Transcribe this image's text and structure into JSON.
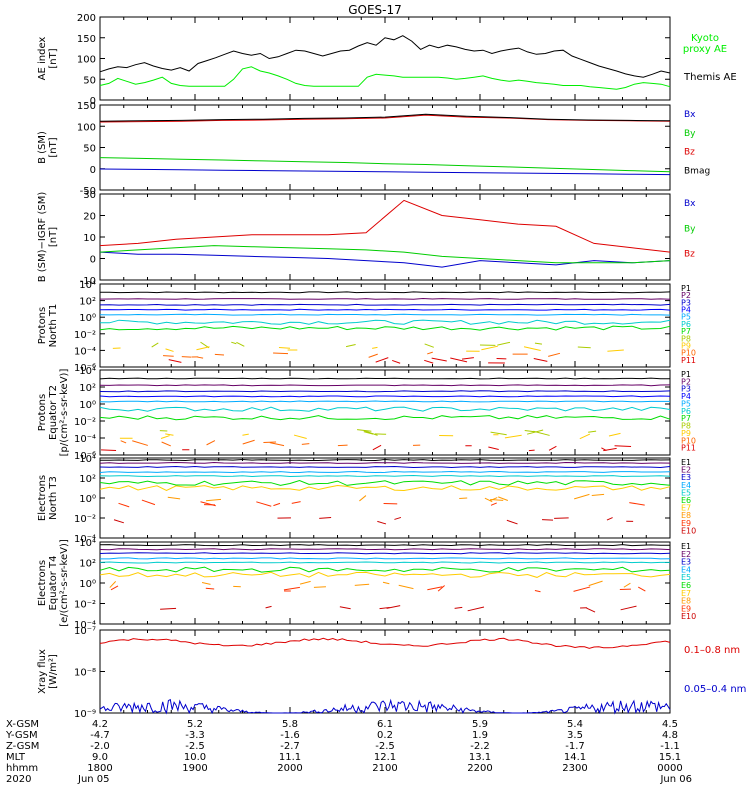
{
  "figure_title": "GOES-17",
  "chart_data": [
    {
      "type": "line",
      "ylabel": [
        "AE index",
        "[nT]"
      ],
      "yticks": [
        "0",
        "50",
        "100",
        "150",
        "200"
      ],
      "ylim": [
        0,
        200
      ],
      "series": [
        {
          "name": "Kyoto proxy AE",
          "name_lines": [
            "Kyoto",
            "proxy AE"
          ],
          "color": "#00ee00",
          "values": [
            35,
            40,
            52,
            45,
            38,
            42,
            48,
            55,
            40,
            35,
            33,
            33,
            33,
            33,
            33,
            50,
            75,
            80,
            70,
            65,
            58,
            50,
            40,
            35,
            33,
            33,
            33,
            33,
            33,
            33,
            55,
            62,
            60,
            58,
            55,
            55,
            55,
            55,
            55,
            53,
            50,
            52,
            55,
            58,
            52,
            48,
            45,
            48,
            45,
            42,
            40,
            38,
            35,
            35,
            35,
            32,
            30,
            28,
            26,
            30,
            38,
            42,
            40,
            38,
            32
          ]
        },
        {
          "name": "Themis AE",
          "color": "#000000",
          "values": [
            68,
            75,
            80,
            78,
            85,
            90,
            82,
            76,
            72,
            78,
            70,
            88,
            95,
            102,
            110,
            118,
            112,
            108,
            112,
            100,
            104,
            112,
            120,
            118,
            112,
            106,
            112,
            118,
            120,
            130,
            138,
            132,
            150,
            145,
            155,
            142,
            122,
            132,
            126,
            132,
            128,
            122,
            118,
            120,
            112,
            118,
            122,
            125,
            116,
            110,
            112,
            118,
            120,
            106,
            98,
            90,
            82,
            76,
            70,
            63,
            58,
            55,
            62,
            70,
            65
          ]
        }
      ]
    },
    {
      "type": "line",
      "ylabel": [
        "B (SM)",
        "[nT]"
      ],
      "yticks": [
        "-50",
        "0",
        "50",
        "100",
        "150"
      ],
      "ylim": [
        -60,
        150
      ],
      "series": [
        {
          "name": "Bx",
          "color": "#0000cc",
          "values": [
            -8,
            -9,
            -10,
            -11,
            -12,
            -13,
            -14,
            -15,
            -16,
            -17,
            -18,
            -19,
            -20,
            -21,
            -22
          ]
        },
        {
          "name": "By",
          "color": "#00cc00",
          "values": [
            20,
            18,
            16,
            14,
            12,
            10,
            8,
            5,
            3,
            0,
            -3,
            -6,
            -9,
            -12,
            -15
          ]
        },
        {
          "name": "Bz",
          "color": "#dd0000",
          "values": [
            108,
            109,
            110,
            112,
            113,
            115,
            116,
            118,
            125,
            120,
            118,
            114,
            112,
            111,
            110
          ]
        },
        {
          "name": "Bmag",
          "color": "#000000",
          "values": [
            110,
            111,
            112,
            114,
            115,
            117,
            118,
            120,
            127,
            122,
            119,
            115,
            113,
            112,
            111
          ]
        }
      ]
    },
    {
      "type": "line",
      "ylabel": [
        "B (SM)−IGRF (SM)",
        "[nT]"
      ],
      "yticks": [
        "-10",
        "0",
        "10",
        "20",
        "30"
      ],
      "ylim": [
        -10,
        30
      ],
      "series": [
        {
          "name": "Bx",
          "color": "#0000cc",
          "values": [
            3,
            2,
            2,
            1.5,
            1,
            0.5,
            0,
            -1,
            -2,
            -4,
            -1,
            -2,
            -3,
            -1,
            -2,
            -1
          ]
        },
        {
          "name": "By",
          "color": "#00cc00",
          "values": [
            3,
            4,
            5,
            6,
            5.5,
            5,
            4.5,
            4,
            3,
            1,
            0,
            -1,
            -2,
            -2,
            -2,
            -1
          ]
        },
        {
          "name": "Bz",
          "color": "#dd0000",
          "values": [
            6,
            7,
            9,
            10,
            11,
            11,
            11,
            12,
            27,
            20,
            18,
            16,
            15,
            7,
            5,
            3
          ]
        }
      ]
    },
    {
      "type": "line",
      "ylabel": [
        "Protons",
        "North T1"
      ],
      "yticks": [
        "10⁻⁶",
        "10⁻⁴",
        "10⁻²",
        "10⁰",
        "10²",
        "10⁴"
      ],
      "ylim": [
        -6,
        4
      ],
      "log": true,
      "legend": [
        "P1",
        "P2",
        "P3",
        "P4",
        "P5",
        "P6",
        "P7",
        "P8",
        "P9",
        "P10",
        "P11"
      ]
    },
    {
      "type": "line",
      "ylabel": [
        "Protons",
        "Equator T2",
        "[p/(cm²-s-sr-keV)]"
      ],
      "yticks": [
        "10⁻⁶",
        "10⁻⁴",
        "10⁻²",
        "10⁰",
        "10²",
        "10⁴"
      ],
      "ylim": [
        -6,
        4
      ],
      "log": true,
      "legend": [
        "P1",
        "P2",
        "P3",
        "P4",
        "P5",
        "P6",
        "P7",
        "P8",
        "P9",
        "P10",
        "P11"
      ]
    },
    {
      "type": "line",
      "ylabel": [
        "Electrons",
        "North T3"
      ],
      "yticks": [
        "10⁻⁴",
        "10⁻²",
        "10⁰",
        "10²",
        "10⁴"
      ],
      "ylim": [
        -4,
        4
      ],
      "log": true,
      "legend": [
        "E1",
        "E2",
        "E3",
        "E4",
        "E5",
        "E6",
        "E7",
        "E8",
        "E9",
        "E10"
      ]
    },
    {
      "type": "line",
      "ylabel": [
        "Electrons",
        "Equator T4",
        "[e/(cm²-s-sr-keV)]"
      ],
      "yticks": [
        "10⁻⁴",
        "10⁻²",
        "10⁰",
        "10²",
        "10⁴"
      ],
      "ylim": [
        -4,
        4
      ],
      "log": true,
      "legend": [
        "E1",
        "E2",
        "E3",
        "E4",
        "E5",
        "E6",
        "E7",
        "E8",
        "E9",
        "E10"
      ]
    },
    {
      "type": "line",
      "ylabel": [
        "Xray flux",
        "[W/m²]"
      ],
      "yticks": [
        "10⁻⁹",
        "10⁻⁸",
        "10⁻⁷"
      ],
      "ylim": [
        -9,
        -7
      ],
      "log": true,
      "series": [
        {
          "name": "0.1–0.8 nm",
          "color": "#dd0000"
        },
        {
          "name": "0.05–0.4 nm",
          "color": "#0000cc"
        }
      ]
    }
  ],
  "x_axis": {
    "row_labels": [
      "X-GSM",
      "Y-GSM",
      "Z-GSM",
      "MLT",
      "hhmm",
      "2020"
    ],
    "columns": [
      [
        "4.2",
        "-4.7",
        "-2.0",
        "9.0",
        "1800",
        "Jun 05"
      ],
      [
        "5.2",
        "-3.3",
        "-2.5",
        "10.0",
        "1900",
        ""
      ],
      [
        "5.8",
        "-1.6",
        "-2.7",
        "11.1",
        "2000",
        ""
      ],
      [
        "6.1",
        "0.2",
        "-2.5",
        "12.1",
        "2100",
        ""
      ],
      [
        "5.9",
        "1.9",
        "-2.2",
        "13.1",
        "2200",
        ""
      ],
      [
        "5.4",
        "3.5",
        "-1.7",
        "14.1",
        "2300",
        ""
      ],
      [
        "4.5",
        "4.8",
        "-1.1",
        "15.1",
        "0000",
        "Jun 06"
      ]
    ]
  },
  "colors": {
    "P": [
      "#000000",
      "#660066",
      "#0000cc",
      "#0000ff",
      "#00aaff",
      "#00cccc",
      "#00dd00",
      "#aacc00",
      "#ffcc00",
      "#ff6600",
      "#dd0000"
    ],
    "E": [
      "#000000",
      "#660066",
      "#0000cc",
      "#00aaff",
      "#00cccc",
      "#00dd00",
      "#ffcc00",
      "#ff9900",
      "#ff3300",
      "#cc0000"
    ]
  }
}
